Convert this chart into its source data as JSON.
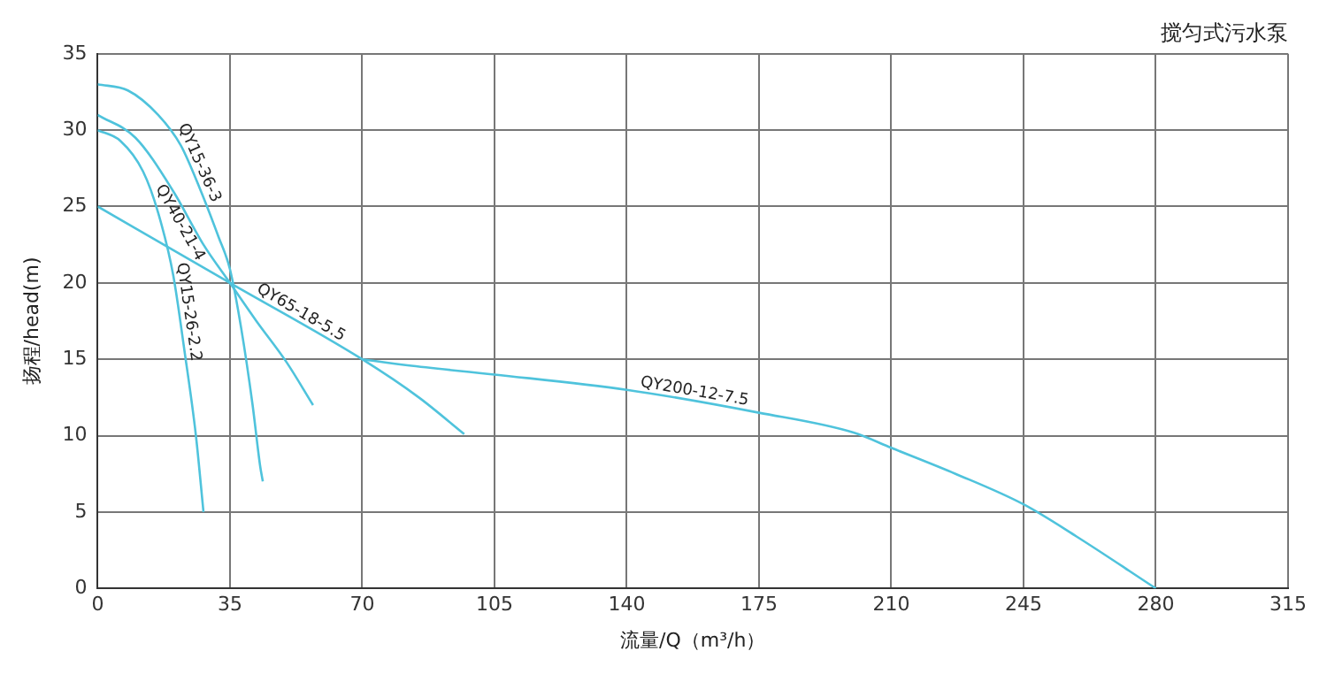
{
  "chart_data": {
    "type": "line",
    "title": "搅匀式污水泵",
    "xlabel": "流量/Q（m³/h）",
    "ylabel": "扬程/head(m)",
    "xlim": [
      0,
      315
    ],
    "xticks": [
      0,
      35,
      70,
      105,
      140,
      175,
      210,
      245,
      280,
      315
    ],
    "ylim": [
      0,
      35
    ],
    "yticks": [
      0,
      5,
      10,
      15,
      20,
      25,
      30,
      35
    ],
    "grid": true,
    "legend": false,
    "marker": "none",
    "line_style": "solid",
    "series": [
      {
        "name": "QY15-36-3",
        "color": "#4fc3dc",
        "x": [
          0,
          8,
          16,
          22,
          27,
          32,
          35,
          38,
          41,
          43,
          43.7
        ],
        "values": [
          33,
          32.6,
          31,
          29,
          26.2,
          23,
          20.9,
          17,
          12,
          8,
          7
        ]
      },
      {
        "name": "QY40-21-4",
        "color": "#4fc3dc",
        "x": [
          0,
          10,
          20,
          28,
          35,
          42,
          50,
          57
        ],
        "values": [
          31,
          29.5,
          26,
          22.5,
          20,
          17.5,
          14.8,
          12
        ]
      },
      {
        "name": "QY15-26-2.2",
        "color": "#4fc3dc",
        "x": [
          0,
          6,
          12,
          16,
          20,
          23,
          26,
          28
        ],
        "values": [
          30,
          29.3,
          27.3,
          24.6,
          20.5,
          15.5,
          10,
          5
        ]
      },
      {
        "name": "QY65-18-5.5",
        "color": "#4fc3dc",
        "x": [
          0,
          35,
          70,
          85,
          97
        ],
        "values": [
          25,
          20,
          15,
          12.5,
          10.1
        ]
      },
      {
        "name": "QY200-12-7.5",
        "color": "#4fc3dc",
        "x": [
          70,
          82,
          105,
          140,
          175,
          200,
          210,
          227,
          245,
          259,
          280
        ],
        "values": [
          15,
          14.6,
          14,
          13,
          11.5,
          10.2,
          9.2,
          7.5,
          5.5,
          3.4,
          0
        ]
      }
    ]
  }
}
